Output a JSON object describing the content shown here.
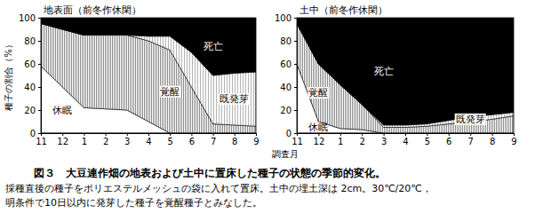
{
  "chart_data": [
    {
      "type": "area",
      "title": "地表面（前冬作休閑）",
      "ylabel": "種子の割合（%）",
      "categories": [
        "11",
        "12",
        "1",
        "2",
        "3",
        "4",
        "5",
        "6",
        "7",
        "8",
        "9"
      ],
      "series": [
        {
          "name": "休眠",
          "color": "#ffffff",
          "values": [
            58,
            40,
            22,
            21,
            20,
            10,
            0,
            0,
            0,
            0,
            0
          ]
        },
        {
          "name": "覚醒",
          "color": "#8c8c8c",
          "values": [
            37,
            50,
            63,
            64,
            65,
            70,
            72,
            40,
            8,
            7,
            6
          ]
        },
        {
          "name": "既発芽",
          "color": "#b4b4b4",
          "values": [
            0,
            0,
            0,
            0,
            0,
            4,
            12,
            30,
            42,
            45,
            47
          ]
        },
        {
          "name": "死亡",
          "color": "#000000",
          "values": [
            5,
            10,
            15,
            15,
            15,
            16,
            16,
            30,
            50,
            48,
            47
          ]
        }
      ],
      "ylim": [
        0,
        100
      ],
      "yticks": [
        0,
        20,
        40,
        60,
        80,
        100
      ],
      "stacked": true,
      "grid": false
    },
    {
      "type": "area",
      "title": "土中（前冬作休閑）",
      "categories": [
        "11",
        "12",
        "1",
        "2",
        "3",
        "4",
        "5",
        "6",
        "7",
        "8",
        "9"
      ],
      "series": [
        {
          "name": "休眠",
          "color": "#ffffff",
          "values": [
            60,
            10,
            4,
            3,
            0,
            0,
            0,
            0,
            0,
            0,
            0
          ]
        },
        {
          "name": "覚醒",
          "color": "#8c8c8c",
          "values": [
            35,
            50,
            38,
            22,
            5,
            5,
            6,
            8,
            10,
            12,
            15
          ]
        },
        {
          "name": "既発芽",
          "color": "#b4b4b4",
          "values": [
            0,
            0,
            0,
            0,
            2,
            2,
            2,
            3,
            4,
            4,
            3
          ]
        },
        {
          "name": "死亡",
          "color": "#000000",
          "values": [
            5,
            40,
            58,
            75,
            93,
            93,
            92,
            89,
            86,
            84,
            82
          ]
        }
      ],
      "ylim": [
        0,
        100
      ],
      "yticks": [
        0,
        20,
        40,
        60,
        80,
        100
      ],
      "stacked": true,
      "grid": false
    }
  ],
  "xlabel": "調査月",
  "caption_title": "図３　大豆連作畑の地表および土中に置床した種子の状態の季節的変化。",
  "caption_notes": [
    "採種直後の種子をポリエステルメッシュの袋に入れて置床。土中の埋土深は 2cm。30℃/20℃，",
    "明条件で10日以内に発芽した種子を覚醒種子とみなした。"
  ]
}
